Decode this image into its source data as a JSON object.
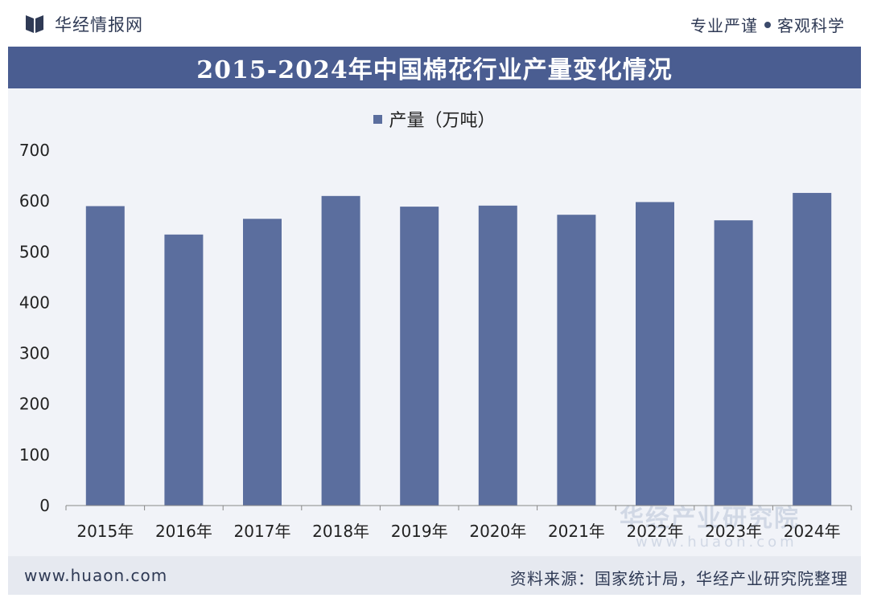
{
  "header": {
    "brand": "华经情报网",
    "slogan_left": "专业严谨",
    "slogan_right": "客观科学",
    "logo_icon": "book-logo-icon"
  },
  "title": "2015-2024年中国棉花行业产量变化情况",
  "chart_data": {
    "type": "bar",
    "title": "2015-2024年中国棉花行业产量变化情况",
    "categories": [
      "2015年",
      "2016年",
      "2017年",
      "2018年",
      "2019年",
      "2020年",
      "2021年",
      "2022年",
      "2023年",
      "2024年"
    ],
    "series": [
      {
        "name": "产量（万吨）",
        "values": [
          590,
          534,
          565,
          610,
          589,
          591,
          573,
          598,
          562,
          616
        ],
        "color": "#5b6e9e"
      }
    ],
    "ylim": [
      0,
      700
    ],
    "yticks": [
      0,
      100,
      200,
      300,
      400,
      500,
      600,
      700
    ],
    "xlabel": "",
    "ylabel": "",
    "legend": "top-center",
    "grid": false
  },
  "watermark": {
    "text": "华经产业研究院",
    "url": "www.huaon.com"
  },
  "footer": {
    "site": "www.huaon.com",
    "source": "资料来源：国家统计局，华经产业研究院整理"
  },
  "colors": {
    "title_band": "#4a5d91",
    "bar": "#5b6e9e",
    "plot_bg": "#f1f3f8"
  }
}
